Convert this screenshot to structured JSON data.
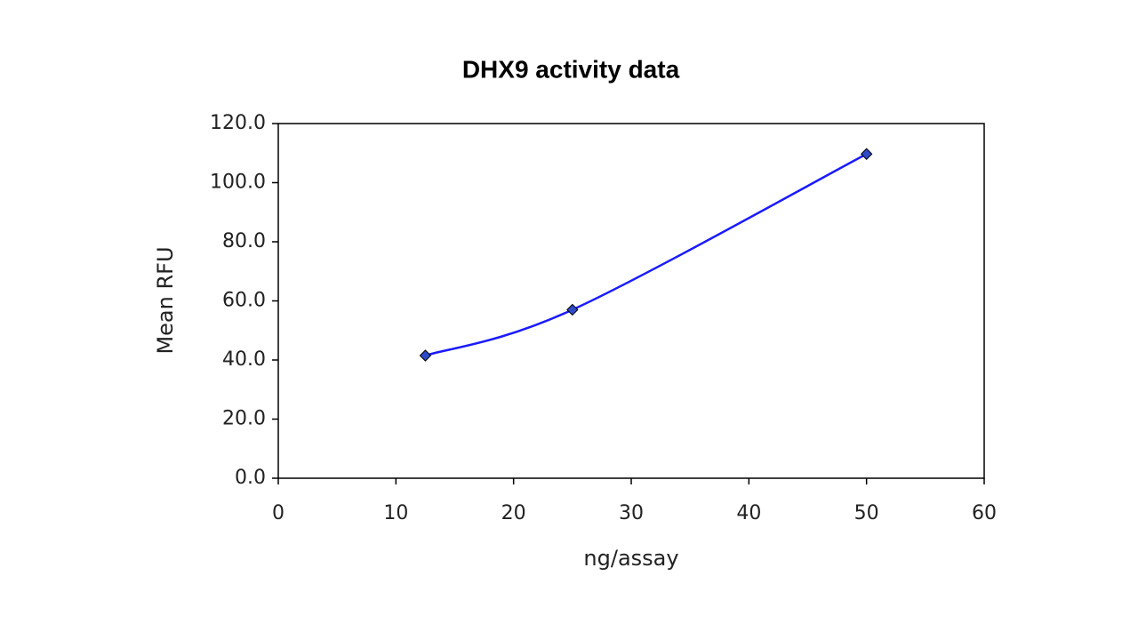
{
  "chart_data": {
    "type": "scatter",
    "title": "DHX9 activity data",
    "x_label": "ng/assay",
    "y_label": "Mean RFU",
    "series": [
      {
        "name": "DHX9",
        "color": "#1a1aff",
        "marker_color": "#2e4bc7",
        "x": [
          12.5,
          25,
          50
        ],
        "values": [
          41.5,
          57.0,
          109.7
        ]
      }
    ],
    "smooth": true,
    "xlim": [
      0,
      60
    ],
    "xticks": [
      0,
      10,
      20,
      30,
      40,
      50,
      60
    ],
    "ylim": [
      0,
      120
    ],
    "yticks": [
      {
        "value": 0,
        "label": "0.0"
      },
      {
        "value": 20,
        "label": "20.0"
      },
      {
        "value": 40,
        "label": "40.0"
      },
      {
        "value": 60,
        "label": "60.0"
      },
      {
        "value": 80,
        "label": "80.0"
      },
      {
        "value": 100,
        "label": "100.0"
      },
      {
        "value": 120,
        "label": "120.0"
      }
    ]
  }
}
